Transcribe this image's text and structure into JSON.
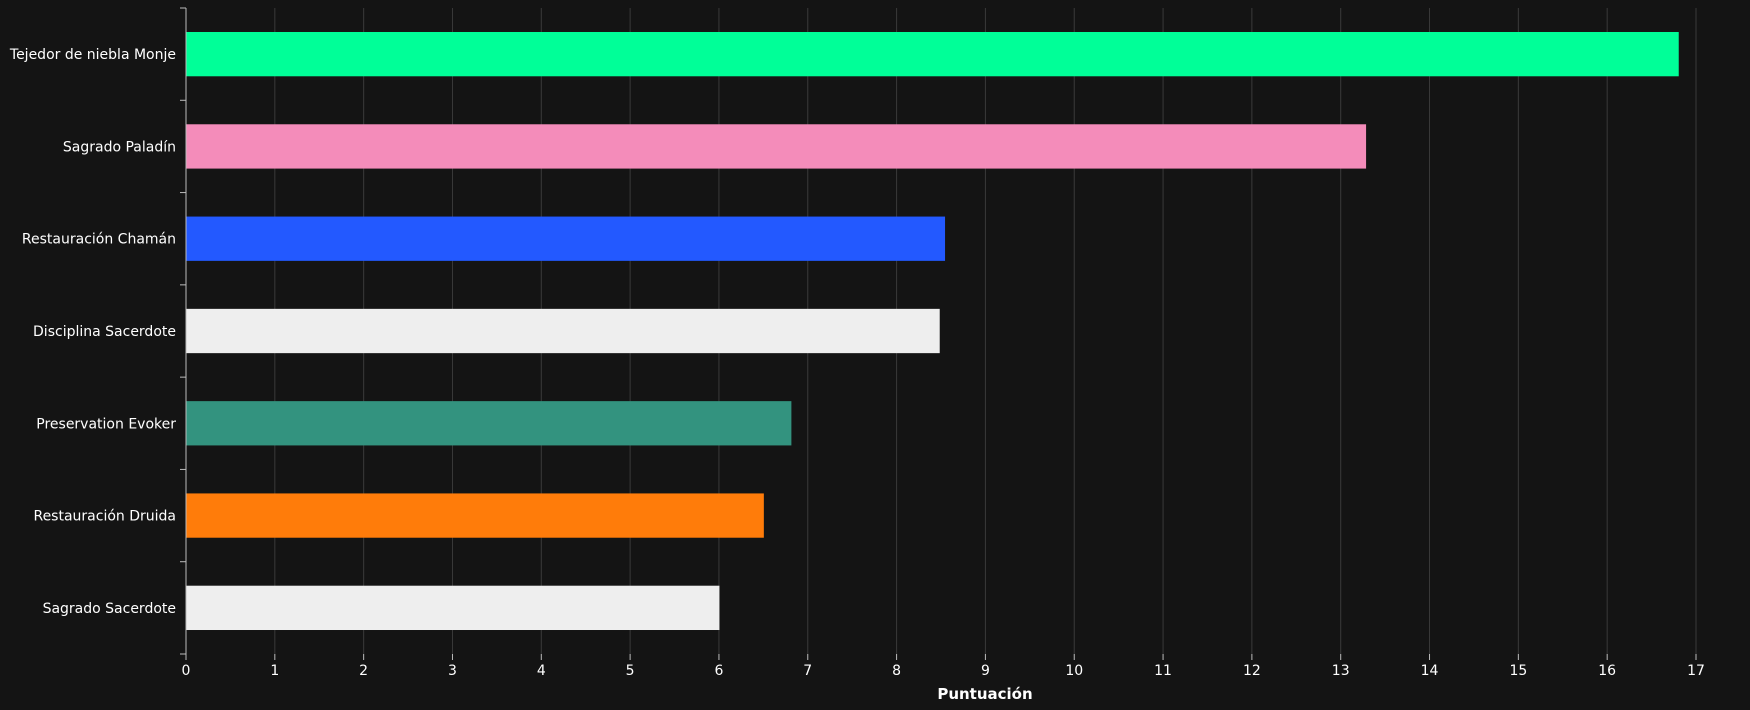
{
  "chart_data": {
    "type": "bar",
    "orientation": "horizontal",
    "title": "",
    "xlabel": "Puntuación",
    "ylabel": "",
    "xlim": [
      0,
      17
    ],
    "x_ticks": [
      0,
      1,
      2,
      3,
      4,
      5,
      6,
      7,
      8,
      9,
      10,
      11,
      12,
      13,
      14,
      15,
      16,
      17
    ],
    "grid": true,
    "legend": "none",
    "background_color": "#141414",
    "categories": [
      "Tejedor de niebla Monje",
      "Sagrado Paladín",
      "Restauración Chamán",
      "Disciplina Sacerdote",
      "Preservation Evoker",
      "Restauración Druida",
      "Sagrado Sacerdote"
    ],
    "values": [
      16.8,
      13.28,
      8.54,
      8.48,
      6.81,
      6.5,
      6.0
    ],
    "colors": [
      "#00FF98",
      "#F48CBA",
      "#2359FF",
      "#EEEEEE",
      "#33937F",
      "#FF7C0A",
      "#EEEEEE"
    ]
  }
}
